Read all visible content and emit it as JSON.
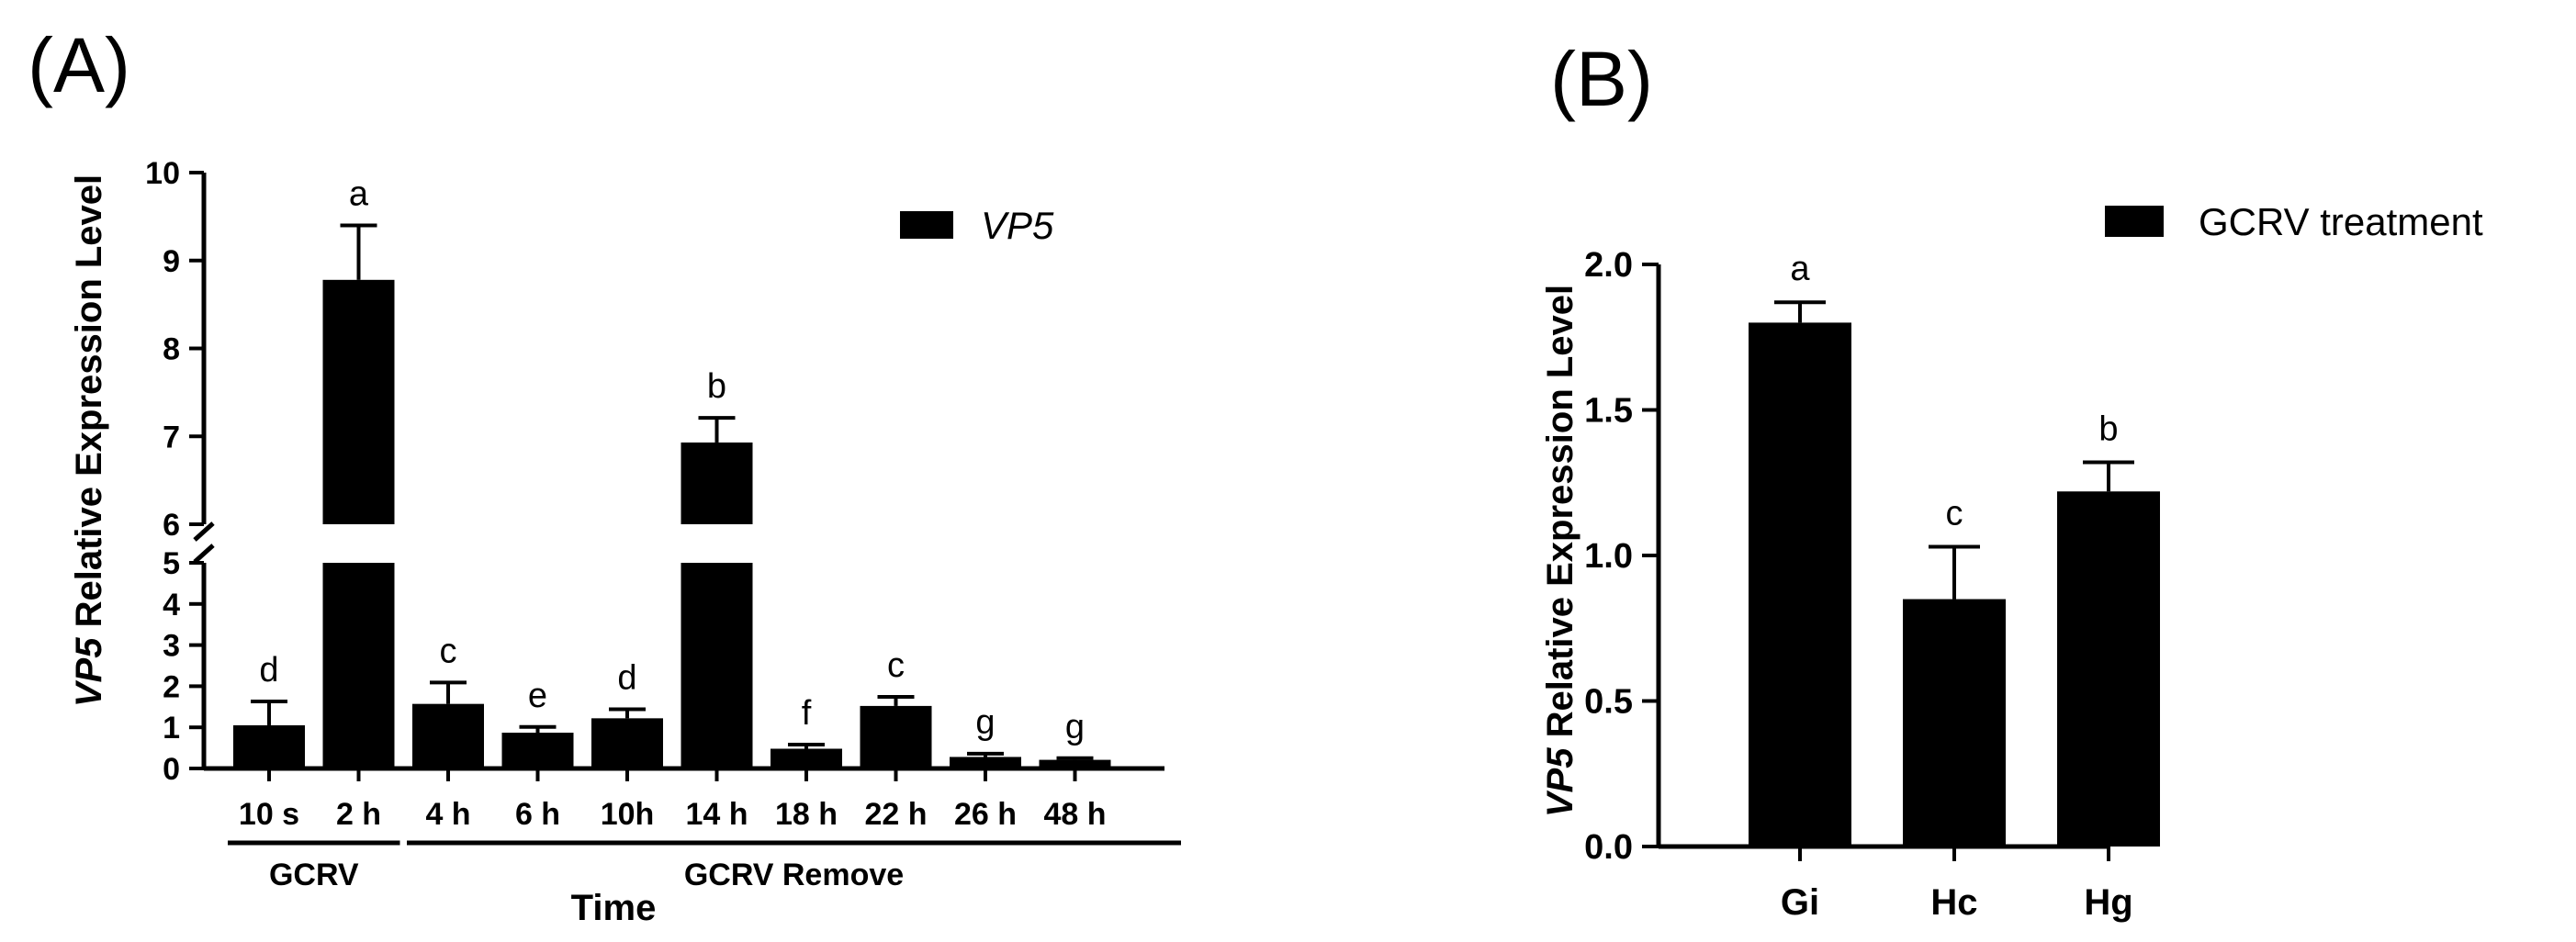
{
  "panels": {
    "a": {
      "label": "(A)"
    },
    "b": {
      "label": "(B)"
    }
  },
  "chart_data": [
    {
      "type": "bar",
      "panel": "A",
      "ylabel_italic": "VP5",
      "ylabel_rest": " Relative Expression Level",
      "xlabel": "Time",
      "legend": "VP5",
      "categories": [
        "10 s",
        "2 h",
        "4 h",
        "6 h",
        "10h",
        "14 h",
        "18 h",
        "22 h",
        "26 h",
        "48 h"
      ],
      "values": [
        1.05,
        8.78,
        1.57,
        0.87,
        1.22,
        6.93,
        0.48,
        1.52,
        0.28,
        0.21
      ],
      "errors": [
        0.58,
        0.62,
        0.52,
        0.14,
        0.22,
        0.28,
        0.1,
        0.22,
        0.08,
        0.04
      ],
      "letters": [
        "d",
        "a",
        "c",
        "e",
        "d",
        "b",
        "f",
        "c",
        "g",
        "g"
      ],
      "y_axis_lower": {
        "range": [
          0,
          5
        ],
        "ticks": [
          "0",
          "1",
          "2",
          "3",
          "4",
          "5"
        ]
      },
      "y_axis_upper": {
        "range": [
          6,
          10
        ],
        "ticks": [
          "6",
          "7",
          "8",
          "9",
          "10"
        ]
      },
      "axis_break": [
        5,
        6
      ],
      "groups": [
        {
          "label": "GCRV",
          "from": 0,
          "to": 1
        },
        {
          "label": "GCRV Remove",
          "from": 2,
          "to": 9
        }
      ]
    },
    {
      "type": "bar",
      "panel": "B",
      "ylabel_italic": "VP5",
      "ylabel_rest": " Relative Expression Level",
      "legend": "GCRV treatment",
      "categories": [
        "Gi",
        "Hc",
        "Hg"
      ],
      "values": [
        1.8,
        0.85,
        1.22
      ],
      "errors": [
        0.07,
        0.18,
        0.1
      ],
      "letters": [
        "a",
        "c",
        "b"
      ],
      "ylim": [
        0,
        2.0
      ],
      "yticks": [
        "0.0",
        "0.5",
        "1.0",
        "1.5",
        "2.0"
      ]
    }
  ]
}
